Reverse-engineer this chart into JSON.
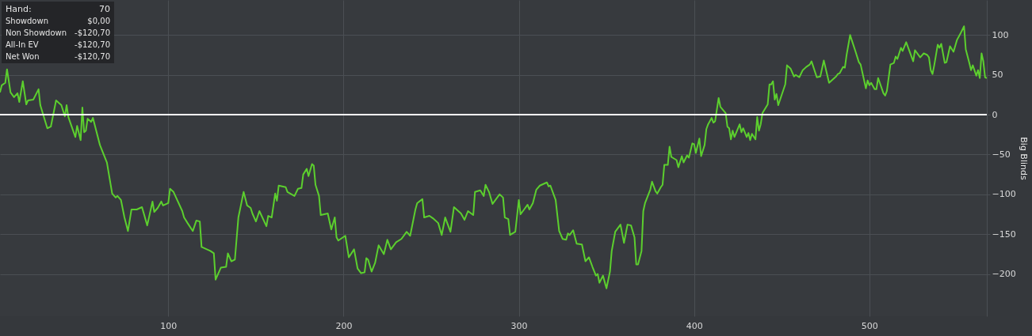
{
  "chart_data": {
    "type": "line",
    "ylabel": "Big Blinds",
    "x": [
      4,
      5,
      7,
      8,
      10,
      12,
      14,
      15,
      17,
      19,
      20,
      23,
      26,
      27,
      31,
      33,
      36,
      39,
      41,
      42,
      43,
      47,
      48,
      50,
      51,
      52,
      53,
      54,
      56,
      57,
      61,
      65,
      68,
      70,
      71,
      73,
      75,
      77,
      79,
      82,
      85,
      88,
      91,
      92,
      94,
      96,
      97,
      100,
      101,
      103,
      108,
      109,
      111,
      114,
      116,
      118,
      119,
      124,
      126,
      127,
      130,
      133,
      134,
      136,
      138,
      140,
      143,
      145,
      147,
      148,
      150,
      152,
      156,
      157,
      159,
      161,
      162,
      163,
      167,
      168,
      172,
      174,
      176,
      177,
      179,
      180,
      182,
      183,
      184,
      186,
      187,
      191,
      193,
      195,
      196,
      197,
      201,
      203,
      206,
      208,
      210,
      212,
      213,
      214,
      216,
      218,
      220,
      223,
      225,
      227,
      230,
      233,
      236,
      238,
      241,
      242,
      245,
      246,
      249,
      251,
      254,
      256,
      258,
      261,
      263,
      267,
      269,
      271,
      274,
      275,
      278,
      280,
      281,
      283,
      285,
      289,
      291,
      292,
      294,
      295,
      298,
      300,
      301,
      303,
      305,
      306,
      308,
      310,
      312,
      316,
      317,
      318,
      321,
      323,
      325,
      327,
      328,
      329,
      331,
      333,
      336,
      338,
      340,
      342,
      344,
      345,
      346,
      348,
      350,
      352,
      353,
      355,
      358,
      360,
      362,
      364,
      366,
      367,
      368,
      370,
      371,
      372,
      375,
      376,
      378,
      379,
      381,
      382,
      383,
      385,
      386,
      387,
      390,
      391,
      393,
      394,
      396,
      397,
      399,
      400,
      401,
      403,
      404,
      406,
      407,
      408,
      410,
      411,
      412,
      414,
      415,
      418,
      419,
      420,
      421,
      422,
      423,
      426,
      427,
      428,
      430,
      431,
      432,
      433,
      435,
      436,
      437,
      438,
      439,
      442,
      443,
      444,
      445,
      446,
      447,
      448,
      452,
      453,
      455,
      457,
      458,
      460,
      462,
      464,
      466,
      467,
      470,
      472,
      474,
      477,
      481,
      482,
      483,
      485,
      486,
      487,
      489,
      492,
      494,
      495,
      498,
      499,
      500,
      501,
      503,
      504,
      505,
      508,
      509,
      510,
      512,
      514,
      515,
      516,
      518,
      519,
      521,
      525,
      526,
      529,
      531,
      533,
      534,
      535,
      536,
      537,
      539,
      540,
      541,
      543,
      544,
      546,
      548,
      550,
      552,
      554,
      555,
      557,
      558,
      559,
      561,
      562,
      563,
      564,
      565,
      566,
      567
    ],
    "series": [
      {
        "color": "#5ccf2e",
        "values": [
          28,
          37,
          40,
          57,
          28,
          22,
          27,
          16,
          42,
          13,
          18,
          19,
          32,
          12,
          -17,
          -15,
          18,
          12,
          -2,
          12,
          -3,
          -28,
          -14,
          -32,
          9,
          -22,
          -20,
          -5,
          -9,
          -4,
          -38,
          -60,
          -99,
          -104,
          -102,
          -107,
          -129,
          -146,
          -119,
          -119,
          -116,
          -139,
          -109,
          -122,
          -117,
          -109,
          -114,
          -111,
          -93,
          -97,
          -121,
          -129,
          -136,
          -146,
          -133,
          -134,
          -166,
          -171,
          -174,
          -207,
          -192,
          -191,
          -174,
          -184,
          -182,
          -129,
          -97,
          -114,
          -117,
          -124,
          -134,
          -121,
          -140,
          -127,
          -129,
          -99,
          -108,
          -89,
          -91,
          -97,
          -102,
          -93,
          -92,
          -75,
          -68,
          -77,
          -62,
          -64,
          -88,
          -102,
          -126,
          -124,
          -144,
          -129,
          -154,
          -158,
          -152,
          -179,
          -169,
          -193,
          -199,
          -198,
          -180,
          -182,
          -197,
          -186,
          -164,
          -175,
          -157,
          -169,
          -160,
          -156,
          -147,
          -152,
          -119,
          -111,
          -106,
          -129,
          -127,
          -130,
          -136,
          -151,
          -129,
          -147,
          -116,
          -124,
          -132,
          -121,
          -126,
          -97,
          -95,
          -102,
          -88,
          -97,
          -112,
          -100,
          -104,
          -129,
          -131,
          -151,
          -147,
          -107,
          -125,
          -119,
          -113,
          -119,
          -111,
          -94,
          -89,
          -85,
          -90,
          -89,
          -107,
          -146,
          -156,
          -157,
          -149,
          -151,
          -145,
          -162,
          -163,
          -184,
          -179,
          -191,
          -202,
          -200,
          -211,
          -202,
          -218,
          -197,
          -171,
          -147,
          -138,
          -161,
          -138,
          -139,
          -154,
          -188,
          -188,
          -171,
          -121,
          -111,
          -94,
          -84,
          -96,
          -99,
          -91,
          -88,
          -63,
          -63,
          -40,
          -53,
          -57,
          -66,
          -52,
          -60,
          -51,
          -54,
          -36,
          -37,
          -48,
          -30,
          -52,
          -38,
          -18,
          -12,
          -4,
          -10,
          -8,
          21,
          10,
          2,
          -15,
          -17,
          -31,
          -20,
          -28,
          -12,
          -22,
          -17,
          -28,
          -23,
          -32,
          -24,
          -31,
          -3,
          -20,
          -12,
          2,
          13,
          38,
          38,
          42,
          19,
          26,
          12,
          38,
          62,
          58,
          48,
          50,
          47,
          56,
          60,
          63,
          67,
          47,
          48,
          68,
          40,
          48,
          51,
          52,
          60,
          59,
          75,
          100,
          80,
          66,
          63,
          33,
          43,
          37,
          40,
          32,
          32,
          46,
          27,
          24,
          30,
          63,
          65,
          73,
          70,
          84,
          80,
          91,
          67,
          81,
          72,
          77,
          75,
          72,
          56,
          51,
          62,
          88,
          84,
          89,
          65,
          66,
          86,
          79,
          94,
          102,
          111,
          82,
          65,
          56,
          62,
          49,
          56,
          46,
          77,
          67,
          47,
          46
        ]
      }
    ],
    "xlim": [
      4,
      567
    ],
    "ylim": [
      -253,
      144
    ],
    "xticks": [
      100,
      200,
      300,
      400,
      500
    ],
    "yticks": [
      -200,
      -150,
      -100,
      -50,
      0,
      50,
      100
    ],
    "grid": true,
    "ref_lines": [
      {
        "axis": "y",
        "value": 0,
        "color": "#ffffff"
      }
    ],
    "annotations": [
      "Hand:",
      "70",
      "Showdown",
      "$0,00",
      "Non Showdown",
      "-$120,70",
      "All-In EV",
      "-$120,70",
      "Net Won",
      "-$120,70"
    ]
  }
}
